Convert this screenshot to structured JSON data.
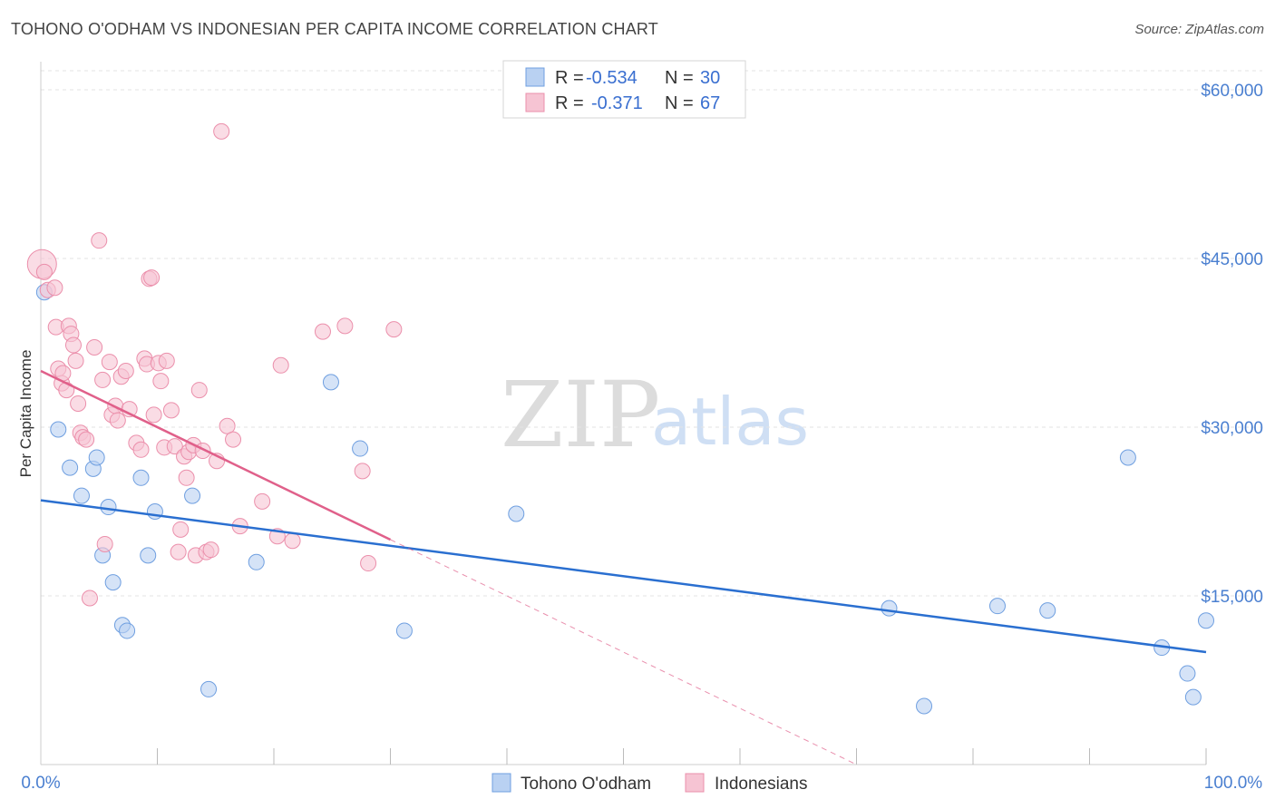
{
  "title": "TOHONO O'ODHAM VS INDONESIAN PER CAPITA INCOME CORRELATION CHART",
  "source": "Source: ZipAtlas.com",
  "watermark": {
    "zip": "ZIP",
    "atlas": "atlas"
  },
  "colors": {
    "blue_fill": "#b9d1f2",
    "blue_stroke": "#6f9fe0",
    "blue_line": "#2a6fd0",
    "pink_fill": "#f6c4d3",
    "pink_stroke": "#eb8fab",
    "pink_line": "#e0608a",
    "grid": "#e3e3e3",
    "axis": "#cccccc",
    "tick_text": "#4a7fd0"
  },
  "legend": {
    "rows": [
      {
        "r_label": "R =",
        "r_value": "-0.534",
        "n_label": "N =",
        "n_value": "30"
      },
      {
        "r_label": "R =",
        "r_value": "-0.371",
        "n_label": "N =",
        "n_value": "67"
      }
    ]
  },
  "chart_data": {
    "type": "scatter",
    "xlabel": "",
    "ylabel": "Per Capita Income",
    "xlim": [
      0,
      100
    ],
    "ylim": [
      0,
      62500
    ],
    "x_tick_labels": [
      "0.0%",
      "100.0%"
    ],
    "y_ticks": [
      15000,
      30000,
      45000,
      60000
    ],
    "y_tick_labels": [
      "$15,000",
      "$30,000",
      "$45,000",
      "$60,000"
    ],
    "grid": true,
    "legend_position": "top-center",
    "series": [
      {
        "name": "Tohono O'odham",
        "color": "blue",
        "points": [
          [
            0.3,
            42000
          ],
          [
            1.5,
            29800
          ],
          [
            2.5,
            26400
          ],
          [
            3.5,
            23900
          ],
          [
            4.5,
            26300
          ],
          [
            4.8,
            27300
          ],
          [
            5.3,
            18600
          ],
          [
            5.8,
            22900
          ],
          [
            6.2,
            16200
          ],
          [
            7.0,
            12400
          ],
          [
            7.4,
            11900
          ],
          [
            8.6,
            25500
          ],
          [
            9.2,
            18600
          ],
          [
            9.8,
            22500
          ],
          [
            13.0,
            23900
          ],
          [
            14.4,
            6700
          ],
          [
            18.5,
            18000
          ],
          [
            24.9,
            34000
          ],
          [
            27.4,
            28100
          ],
          [
            31.2,
            11900
          ],
          [
            40.8,
            22300
          ],
          [
            72.8,
            13900
          ],
          [
            75.8,
            5200
          ],
          [
            82.1,
            14100
          ],
          [
            86.4,
            13700
          ],
          [
            93.3,
            27300
          ],
          [
            96.2,
            10400
          ],
          [
            98.4,
            8100
          ],
          [
            98.9,
            6000
          ],
          [
            100.0,
            12800
          ]
        ],
        "trend": {
          "x": [
            0,
            100
          ],
          "y": [
            23500,
            10000
          ]
        }
      },
      {
        "name": "Indonesians",
        "color": "pink",
        "points": [
          [
            0.1,
            44500
          ],
          [
            0.3,
            43800
          ],
          [
            0.6,
            42200
          ],
          [
            1.2,
            42400
          ],
          [
            1.3,
            38900
          ],
          [
            1.5,
            35200
          ],
          [
            1.8,
            33900
          ],
          [
            1.9,
            34800
          ],
          [
            2.2,
            33300
          ],
          [
            2.4,
            39000
          ],
          [
            2.6,
            38300
          ],
          [
            2.8,
            37300
          ],
          [
            3.0,
            35900
          ],
          [
            3.2,
            32100
          ],
          [
            3.4,
            29500
          ],
          [
            3.6,
            29100
          ],
          [
            3.9,
            28900
          ],
          [
            4.2,
            14800
          ],
          [
            4.6,
            37100
          ],
          [
            5.0,
            46600
          ],
          [
            5.3,
            34200
          ],
          [
            5.5,
            19600
          ],
          [
            5.9,
            35800
          ],
          [
            6.1,
            31100
          ],
          [
            6.4,
            31900
          ],
          [
            6.6,
            30600
          ],
          [
            6.9,
            34500
          ],
          [
            7.3,
            35000
          ],
          [
            7.6,
            31600
          ],
          [
            8.2,
            28600
          ],
          [
            8.6,
            28000
          ],
          [
            8.9,
            36100
          ],
          [
            9.1,
            35600
          ],
          [
            9.3,
            43200
          ],
          [
            9.5,
            43300
          ],
          [
            9.7,
            31100
          ],
          [
            10.1,
            35700
          ],
          [
            10.3,
            34100
          ],
          [
            10.6,
            28200
          ],
          [
            10.8,
            35900
          ],
          [
            11.2,
            31500
          ],
          [
            11.5,
            28300
          ],
          [
            11.8,
            18900
          ],
          [
            12.0,
            20900
          ],
          [
            12.3,
            27400
          ],
          [
            12.5,
            25500
          ],
          [
            12.7,
            27800
          ],
          [
            13.1,
            28400
          ],
          [
            13.3,
            18600
          ],
          [
            13.6,
            33300
          ],
          [
            13.9,
            27900
          ],
          [
            14.2,
            18900
          ],
          [
            14.6,
            19100
          ],
          [
            15.1,
            27000
          ],
          [
            15.5,
            56300
          ],
          [
            16.0,
            30100
          ],
          [
            16.5,
            28900
          ],
          [
            17.1,
            21200
          ],
          [
            19.0,
            23400
          ],
          [
            20.3,
            20300
          ],
          [
            20.6,
            35500
          ],
          [
            21.6,
            19900
          ],
          [
            24.2,
            38500
          ],
          [
            26.1,
            39000
          ],
          [
            27.6,
            26100
          ],
          [
            28.1,
            17900
          ],
          [
            30.3,
            38700
          ]
        ],
        "trend": {
          "x": [
            0,
            30
          ],
          "y": [
            35000,
            20000
          ]
        },
        "trend_extension": {
          "x": [
            30,
            70
          ],
          "y": [
            20000,
            0
          ]
        }
      }
    ]
  }
}
